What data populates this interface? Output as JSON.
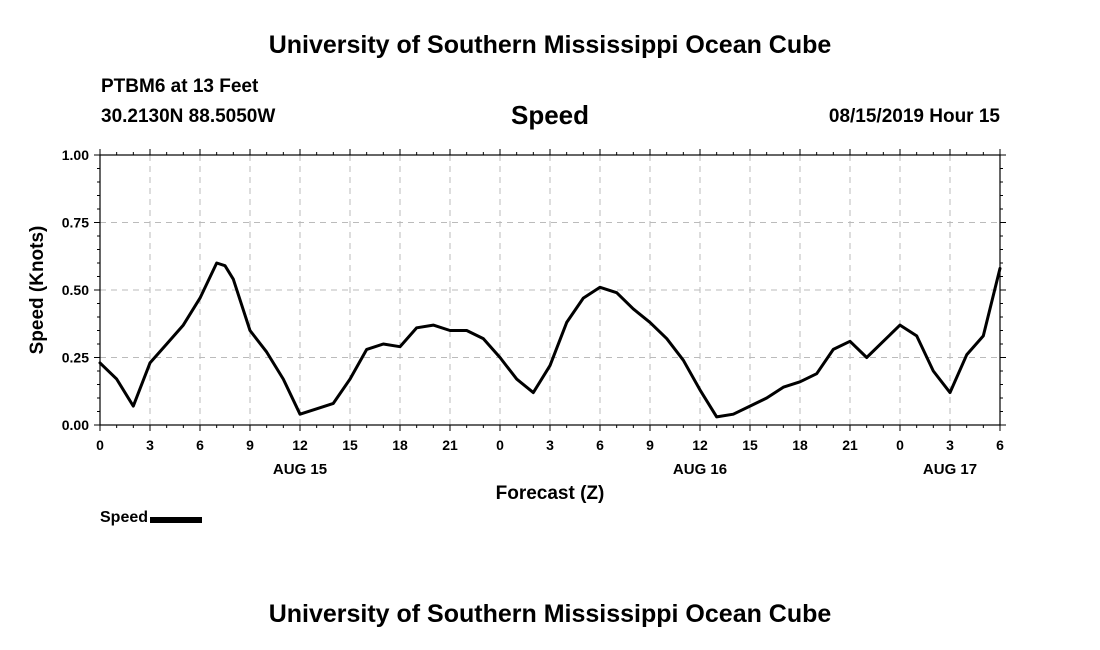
{
  "header": {
    "top_title": "University of Southern Mississippi Ocean Cube",
    "station": "PTBM6 at 13 Feet",
    "coordinates": "30.2130N 88.5050W",
    "datetime": "08/15/2019 Hour 15",
    "bottom_title": "University of Southern Mississippi Ocean Cube"
  },
  "legend": {
    "label": "Speed",
    "color": "#000000"
  },
  "chart_data": {
    "type": "line",
    "title": "Speed",
    "xlabel": "Forecast (Z)",
    "ylabel": "Speed (Knots)",
    "xlim": [
      0,
      54
    ],
    "ylim": [
      0,
      1.0
    ],
    "grid": true,
    "legend_position": "bottom-left",
    "y_ticks": [
      "0.00",
      "0.25",
      "0.50",
      "0.75",
      "1.00"
    ],
    "y_tick_values": [
      0,
      0.25,
      0.5,
      0.75,
      1.0
    ],
    "x_tick_hours": [
      0,
      3,
      6,
      9,
      12,
      15,
      18,
      21,
      24,
      27,
      30,
      33,
      36,
      39,
      42,
      45,
      48,
      51,
      54
    ],
    "x_tick_labels": [
      "0",
      "3",
      "6",
      "9",
      "12",
      "15",
      "18",
      "21",
      "0",
      "3",
      "6",
      "9",
      "12",
      "15",
      "18",
      "21",
      "0",
      "3",
      "6"
    ],
    "date_labels": [
      {
        "hour": 12,
        "label": "AUG 15"
      },
      {
        "hour": 36,
        "label": "AUG 16"
      },
      {
        "hour": 51,
        "label": "AUG 17"
      }
    ],
    "series": [
      {
        "name": "Speed",
        "x": [
          0,
          1,
          2,
          3,
          4,
          5,
          6,
          7,
          7.5,
          8,
          9,
          10,
          11,
          12,
          13,
          14,
          15,
          16,
          17,
          18,
          19,
          20,
          21,
          22,
          23,
          24,
          25,
          26,
          27,
          28,
          29,
          30,
          31,
          32,
          33,
          34,
          35,
          36,
          37,
          38,
          39,
          40,
          41,
          42,
          43,
          44,
          45,
          46,
          47,
          48,
          49,
          50,
          51,
          52,
          53,
          54
        ],
        "values": [
          0.23,
          0.17,
          0.07,
          0.23,
          0.3,
          0.37,
          0.47,
          0.6,
          0.59,
          0.54,
          0.35,
          0.27,
          0.17,
          0.04,
          0.06,
          0.08,
          0.17,
          0.28,
          0.3,
          0.29,
          0.36,
          0.37,
          0.35,
          0.35,
          0.32,
          0.25,
          0.17,
          0.12,
          0.22,
          0.38,
          0.47,
          0.51,
          0.49,
          0.43,
          0.38,
          0.32,
          0.24,
          0.13,
          0.03,
          0.04,
          0.07,
          0.1,
          0.14,
          0.16,
          0.19,
          0.28,
          0.31,
          0.25,
          0.31,
          0.37,
          0.33,
          0.2,
          0.12,
          0.26,
          0.33,
          0.58
        ]
      }
    ]
  }
}
